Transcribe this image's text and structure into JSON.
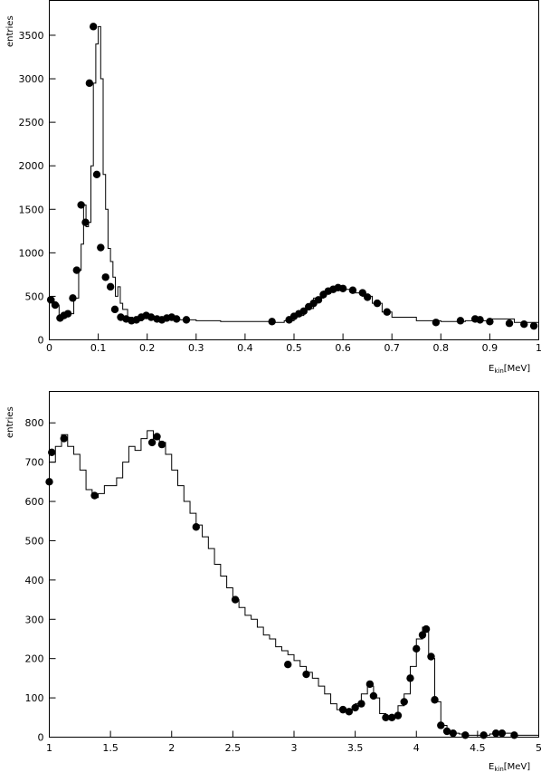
{
  "chart_data": [
    {
      "type": "line",
      "style": "histogram with overlaid filled-circle markers",
      "ylabel": "entries",
      "xlabel_main": "E",
      "xlabel_sub": "kin",
      "xlabel_unit": "[MeV]",
      "xlim": [
        0,
        1
      ],
      "ylim": [
        0,
        3900
      ],
      "x_ticks": [
        {
          "value": 0,
          "label": "0"
        },
        {
          "value": 0.1,
          "label": "0.1"
        },
        {
          "value": 0.2,
          "label": "0.2"
        },
        {
          "value": 0.3,
          "label": "0.3"
        },
        {
          "value": 0.4,
          "label": "0.4"
        },
        {
          "value": 0.5,
          "label": "0.5"
        },
        {
          "value": 0.6,
          "label": "0.6"
        },
        {
          "value": 0.7,
          "label": "0.7"
        },
        {
          "value": 0.8,
          "label": "0.8"
        },
        {
          "value": 0.9,
          "label": "0.9"
        },
        {
          "value": 1,
          "label": "1"
        }
      ],
      "y_ticks": [
        {
          "value": 0,
          "label": "0"
        },
        {
          "value": 500,
          "label": "500"
        },
        {
          "value": 1000,
          "label": "1000"
        },
        {
          "value": 1500,
          "label": "1500"
        },
        {
          "value": 2000,
          "label": "2000"
        },
        {
          "value": 2500,
          "label": "2500"
        },
        {
          "value": 3000,
          "label": "3000"
        },
        {
          "value": 3500,
          "label": "3500"
        }
      ],
      "histogram": {
        "x": [
          0.0,
          0.01,
          0.02,
          0.03,
          0.04,
          0.05,
          0.06,
          0.065,
          0.07,
          0.075,
          0.08,
          0.085,
          0.09,
          0.095,
          0.1,
          0.105,
          0.11,
          0.115,
          0.12,
          0.125,
          0.13,
          0.135,
          0.14,
          0.145,
          0.15,
          0.16,
          0.17,
          0.18,
          0.19,
          0.2,
          0.21,
          0.22,
          0.23,
          0.24,
          0.25,
          0.26,
          0.28,
          0.3,
          0.35,
          0.4,
          0.45,
          0.48,
          0.5,
          0.52,
          0.54,
          0.56,
          0.58,
          0.6,
          0.62,
          0.64,
          0.66,
          0.68,
          0.7,
          0.75,
          0.8,
          0.85,
          0.9,
          0.95,
          1.0
        ],
        "y": [
          470,
          400,
          250,
          270,
          300,
          480,
          800,
          1100,
          1550,
          1300,
          1350,
          2000,
          2950,
          3400,
          3600,
          3000,
          1900,
          1500,
          1050,
          900,
          720,
          500,
          610,
          420,
          350,
          260,
          240,
          220,
          250,
          280,
          270,
          250,
          230,
          240,
          250,
          230,
          230,
          220,
          210,
          210,
          200,
          220,
          280,
          360,
          480,
          560,
          610,
          580,
          540,
          500,
          420,
          320,
          260,
          220,
          210,
          220,
          240,
          200,
          160
        ]
      },
      "points": {
        "x": [
          0.003,
          0.012,
          0.022,
          0.03,
          0.038,
          0.048,
          0.056,
          0.065,
          0.074,
          0.082,
          0.09,
          0.097,
          0.105,
          0.115,
          0.125,
          0.134,
          0.146,
          0.157,
          0.168,
          0.178,
          0.188,
          0.198,
          0.208,
          0.22,
          0.23,
          0.24,
          0.25,
          0.26,
          0.28,
          0.455,
          0.49,
          0.5,
          0.51,
          0.52,
          0.53,
          0.54,
          0.55,
          0.56,
          0.57,
          0.58,
          0.59,
          0.6,
          0.62,
          0.64,
          0.65,
          0.67,
          0.69,
          0.79,
          0.84,
          0.87,
          0.88,
          0.9,
          0.94,
          0.97,
          0.99
        ],
        "y": [
          460,
          400,
          250,
          280,
          300,
          480,
          800,
          1550,
          1350,
          2950,
          3600,
          1900,
          1060,
          720,
          610,
          350,
          260,
          240,
          220,
          230,
          260,
          280,
          260,
          240,
          230,
          250,
          260,
          240,
          230,
          210,
          230,
          270,
          300,
          330,
          380,
          420,
          460,
          520,
          560,
          580,
          600,
          590,
          570,
          540,
          490,
          420,
          320,
          200,
          220,
          240,
          230,
          210,
          190,
          180,
          160
        ]
      }
    },
    {
      "type": "line",
      "style": "histogram with overlaid filled-circle markers",
      "ylabel": "entries",
      "xlabel_main": "E",
      "xlabel_sub": "kin",
      "xlabel_unit": "[MeV]",
      "xlim": [
        1,
        5
      ],
      "ylim": [
        0,
        880
      ],
      "x_ticks": [
        {
          "value": 1,
          "label": "1"
        },
        {
          "value": 1.5,
          "label": "1.5"
        },
        {
          "value": 2,
          "label": "2"
        },
        {
          "value": 2.5,
          "label": "2.5"
        },
        {
          "value": 3,
          "label": "3"
        },
        {
          "value": 3.5,
          "label": "3.5"
        },
        {
          "value": 4,
          "label": "4"
        },
        {
          "value": 4.5,
          "label": "4.5"
        },
        {
          "value": 5,
          "label": "5"
        }
      ],
      "y_ticks": [
        {
          "value": 0,
          "label": "0"
        },
        {
          "value": 100,
          "label": "100"
        },
        {
          "value": 200,
          "label": "200"
        },
        {
          "value": 300,
          "label": "300"
        },
        {
          "value": 400,
          "label": "400"
        },
        {
          "value": 500,
          "label": "500"
        },
        {
          "value": 600,
          "label": "600"
        },
        {
          "value": 700,
          "label": "700"
        },
        {
          "value": 800,
          "label": "800"
        }
      ],
      "histogram": {
        "x": [
          1.0,
          1.05,
          1.1,
          1.15,
          1.2,
          1.25,
          1.3,
          1.35,
          1.4,
          1.45,
          1.5,
          1.55,
          1.6,
          1.65,
          1.7,
          1.75,
          1.8,
          1.85,
          1.9,
          1.95,
          2.0,
          2.05,
          2.1,
          2.15,
          2.2,
          2.25,
          2.3,
          2.35,
          2.4,
          2.45,
          2.5,
          2.55,
          2.6,
          2.65,
          2.7,
          2.75,
          2.8,
          2.85,
          2.9,
          2.95,
          3.0,
          3.05,
          3.1,
          3.15,
          3.2,
          3.25,
          3.3,
          3.35,
          3.4,
          3.45,
          3.5,
          3.55,
          3.6,
          3.65,
          3.7,
          3.75,
          3.8,
          3.85,
          3.9,
          3.95,
          4.0,
          4.05,
          4.1,
          4.15,
          4.2,
          4.25,
          4.3,
          4.35,
          4.4,
          4.5,
          4.6,
          4.7,
          4.8,
          5.0
        ],
        "y": [
          700,
          740,
          770,
          740,
          720,
          680,
          630,
          610,
          620,
          640,
          640,
          660,
          700,
          740,
          730,
          760,
          780,
          760,
          750,
          720,
          680,
          640,
          600,
          570,
          540,
          510,
          480,
          440,
          410,
          380,
          350,
          330,
          310,
          300,
          280,
          260,
          250,
          230,
          220,
          210,
          195,
          180,
          165,
          150,
          130,
          110,
          85,
          70,
          65,
          70,
          85,
          110,
          130,
          100,
          60,
          50,
          55,
          80,
          110,
          180,
          250,
          280,
          200,
          90,
          30,
          15,
          10,
          8,
          5,
          5,
          8,
          10,
          5,
          0
        ]
      },
      "points": {
        "x": [
          1.0,
          1.02,
          1.12,
          1.37,
          1.84,
          1.88,
          1.92,
          2.2,
          2.52,
          2.95,
          3.1,
          3.4,
          3.45,
          3.5,
          3.55,
          3.62,
          3.65,
          3.75,
          3.8,
          3.85,
          3.9,
          3.95,
          4.0,
          4.05,
          4.08,
          4.12,
          4.15,
          4.2,
          4.25,
          4.3,
          4.4,
          4.55,
          4.65,
          4.7,
          4.8
        ],
        "y": [
          650,
          725,
          760,
          615,
          750,
          765,
          745,
          535,
          350,
          185,
          160,
          70,
          65,
          75,
          85,
          135,
          105,
          50,
          50,
          55,
          90,
          150,
          225,
          260,
          275,
          205,
          95,
          30,
          15,
          10,
          5,
          5,
          10,
          10,
          5
        ]
      }
    }
  ]
}
